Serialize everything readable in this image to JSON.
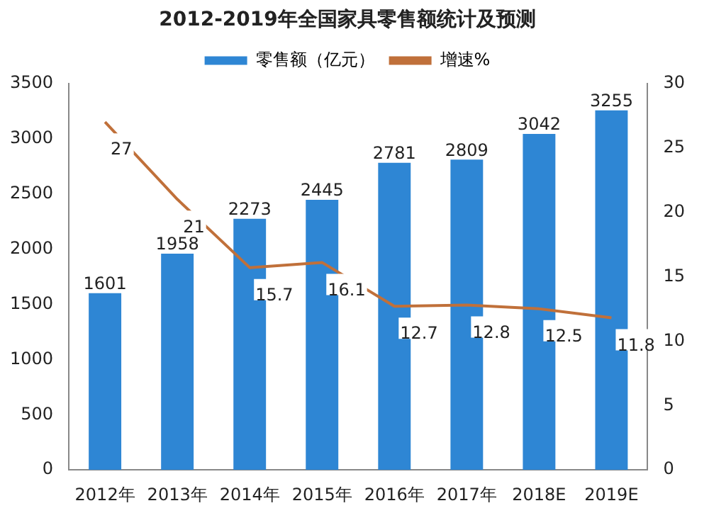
{
  "chart_data": {
    "type": "bar",
    "title": "2012-2019年全国家具零售额统计及预测",
    "categories": [
      "2012年",
      "2013年",
      "2014年",
      "2015年",
      "2016年",
      "2017年",
      "2018E",
      "2019E"
    ],
    "series": [
      {
        "name": "零售额（亿元）",
        "color": "#2e86d4",
        "values": [
          1601,
          1958,
          2273,
          2445,
          2781,
          2809,
          3042,
          3255
        ],
        "value_labels": [
          "1601",
          "1958",
          "2273",
          "2445",
          "2781",
          "2809",
          "3042",
          "3255"
        ]
      },
      {
        "name": "增速%",
        "type": "line",
        "axis": "y2",
        "color": "#c0703a",
        "values": [
          27,
          21,
          15.7,
          16.1,
          12.7,
          12.8,
          12.5,
          11.8
        ],
        "value_labels": [
          "27",
          "21",
          "15.7",
          "16.1",
          "12.7",
          "12.8",
          "12.5",
          "11.8"
        ]
      }
    ],
    "ylim": [
      0,
      3500
    ],
    "yticks": [
      0,
      500,
      1000,
      1500,
      2000,
      2500,
      3000,
      3500
    ],
    "y2lim": [
      0,
      30
    ],
    "y2ticks": [
      0,
      5,
      10,
      15,
      20,
      25,
      30
    ],
    "legend": "top",
    "grid": false,
    "marker": "none"
  }
}
